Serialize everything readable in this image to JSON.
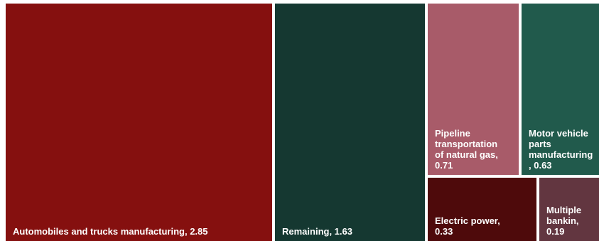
{
  "chart_data": {
    "type": "treemap",
    "items": [
      {
        "name": "Automobiles and trucks manufacturing",
        "value": 2.85,
        "label": "Automobiles and trucks manufacturing,  2.85",
        "color": "#85100f"
      },
      {
        "name": "Remaining",
        "value": 1.63,
        "label": "Remaining,  1.63",
        "color": "#153831"
      },
      {
        "name": "Pipeline transportation of natural gas",
        "value": 0.71,
        "label": "Pipeline\ntransportation\nof natural gas,\n0.71",
        "color": "#a85b69"
      },
      {
        "name": "Motor vehicle parts manufacturing",
        "value": 0.63,
        "label": "Motor vehicle\nparts\nmanufacturing\n,  0.63",
        "color": "#215a4c"
      },
      {
        "name": "Electric power",
        "value": 0.33,
        "label": "Electric power,\n0.33",
        "color": "#4e0a0b"
      },
      {
        "name": "Multiple bankin",
        "value": 0.19,
        "label": "Multiple\nbankin,\n0.19",
        "color": "#623640"
      }
    ]
  }
}
